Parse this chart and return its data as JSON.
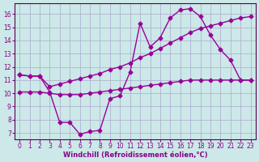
{
  "xlabel": "Windchill (Refroidissement éolien,°C)",
  "background_color": "#cce8e8",
  "grid_color": "#aaaacc",
  "line_color": "#990099",
  "x_ticks": [
    0,
    1,
    2,
    3,
    4,
    5,
    6,
    7,
    8,
    9,
    10,
    11,
    12,
    13,
    14,
    15,
    16,
    17,
    18,
    19,
    20,
    21,
    22,
    23
  ],
  "y_ticks": [
    7,
    8,
    9,
    10,
    11,
    12,
    13,
    14,
    15,
    16
  ],
  "xlim": [
    -0.5,
    23.5
  ],
  "ylim": [
    6.5,
    16.8
  ],
  "line1_x": [
    0,
    1,
    2,
    3,
    4,
    5,
    6,
    7,
    8,
    9,
    10,
    11,
    12,
    13,
    14,
    15,
    16,
    17,
    18,
    19,
    20,
    21,
    22,
    23
  ],
  "line1_y": [
    11.4,
    11.3,
    11.3,
    10.1,
    7.8,
    7.8,
    6.9,
    7.1,
    7.2,
    9.6,
    9.8,
    11.6,
    15.3,
    13.5,
    14.2,
    15.7,
    16.3,
    16.4,
    15.8,
    14.4,
    13.3,
    12.5,
    11.0,
    11.0
  ],
  "line2_x": [
    0,
    1,
    2,
    3,
    4,
    5,
    6,
    7,
    8,
    9,
    10,
    11,
    12,
    13,
    14,
    15,
    16,
    17,
    18,
    19,
    20,
    21,
    22,
    23
  ],
  "line2_y": [
    11.4,
    11.3,
    11.3,
    10.5,
    10.7,
    10.9,
    11.1,
    11.3,
    11.5,
    11.8,
    12.0,
    12.3,
    12.7,
    13.0,
    13.4,
    13.8,
    14.2,
    14.6,
    14.9,
    15.1,
    15.3,
    15.5,
    15.7,
    15.8
  ],
  "line3_x": [
    0,
    1,
    2,
    3,
    4,
    5,
    6,
    7,
    8,
    9,
    10,
    11,
    12,
    13,
    14,
    15,
    16,
    17,
    18,
    19,
    20,
    21,
    22,
    23
  ],
  "line3_y": [
    10.1,
    10.1,
    10.1,
    10.0,
    9.9,
    9.9,
    9.9,
    10.0,
    10.1,
    10.2,
    10.3,
    10.4,
    10.5,
    10.6,
    10.7,
    10.8,
    10.9,
    11.0,
    11.0,
    11.0,
    11.0,
    11.0,
    11.0,
    11.0
  ],
  "marker_size": 2.5,
  "line_width": 1.0,
  "tick_fontsize": 5.5,
  "label_fontsize": 6.0
}
